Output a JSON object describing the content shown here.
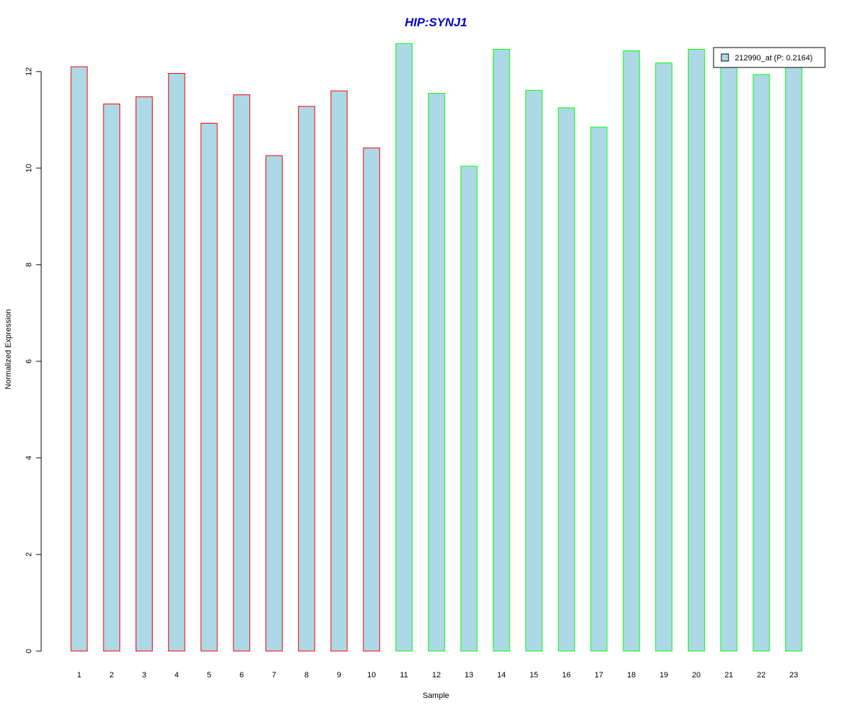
{
  "chart_data": {
    "type": "bar",
    "title": "HIP:SYNJ1",
    "xlabel": "Sample",
    "ylabel": "Normalized Expression",
    "ylim": [
      0,
      12.6
    ],
    "y_ticks": [
      0,
      2,
      4,
      6,
      8,
      10,
      12
    ],
    "categories": [
      "1",
      "2",
      "3",
      "4",
      "5",
      "6",
      "7",
      "8",
      "9",
      "10",
      "11",
      "12",
      "13",
      "14",
      "15",
      "16",
      "17",
      "18",
      "19",
      "20",
      "21",
      "22",
      "23"
    ],
    "series": [
      {
        "name": "212990_at (P: 0.2164)",
        "values": [
          12.1,
          11.33,
          11.48,
          11.96,
          10.93,
          11.52,
          10.26,
          11.28,
          11.6,
          10.42,
          12.58,
          11.55,
          10.04,
          12.46,
          11.61,
          11.25,
          10.85,
          12.43,
          12.18,
          12.46,
          12.1,
          11.94,
          12.1
        ],
        "fill_color": "#add8e6"
      }
    ],
    "groups": [
      {
        "samples": [
          1,
          2,
          3,
          4,
          5,
          6,
          7,
          8,
          9,
          10
        ],
        "border_color": "#ff0000"
      },
      {
        "samples": [
          11,
          12,
          13,
          14,
          15,
          16,
          17,
          18,
          19,
          20,
          21,
          22,
          23
        ],
        "border_color": "#00ff00"
      }
    ],
    "title_color": "#0000cd",
    "grid": false,
    "legend_position": "top-right"
  }
}
